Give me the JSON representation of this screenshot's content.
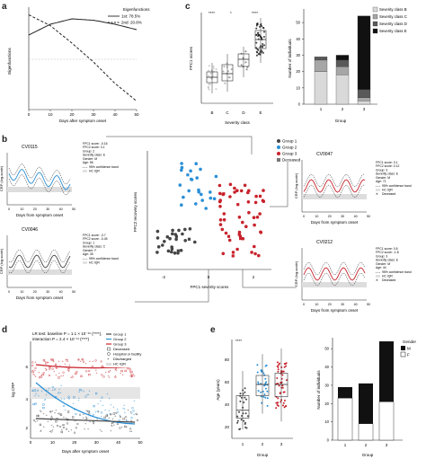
{
  "panels": {
    "a": {
      "letter": "a",
      "ylabel": "Eigenfunctions",
      "xlabel": "Days after symptom onset",
      "xticks": [
        "0",
        "10",
        "20",
        "30",
        "40",
        "50"
      ],
      "legend_title": "Eigenfunctions",
      "legend": [
        "1st: 78.5%",
        "2nd: 20.8%"
      ]
    },
    "c": {
      "letter": "c",
      "ylabel": "FPC1 scores",
      "xlabel": "Severity class",
      "categories": [
        "B",
        "C",
        "D",
        "E"
      ],
      "sig": [
        "****",
        "*",
        "****"
      ],
      "bar_ylabel": "Number of individuals",
      "bar_xlabel": "Group",
      "bar_groups": [
        "1",
        "2",
        "3"
      ],
      "bar_yticks": [
        "0",
        "10",
        "20",
        "30",
        "40",
        "50"
      ],
      "legend": [
        "Severity class B",
        "Severity class C",
        "Severity class D",
        "Severity class E"
      ],
      "colors": [
        "#d9d9d9",
        "#a6a6a6",
        "#595959",
        "#111111"
      ]
    },
    "b": {
      "letter": "b",
      "scatter_xlabel": "FPC1 severity scores",
      "scatter_ylabel": "FPC2 recovery scores",
      "scatter_xticks": [
        "-2",
        "0",
        "2"
      ],
      "legend": [
        "Group 1",
        "Group 2",
        "Group 3",
        "Deceased"
      ],
      "group_colors": [
        "#444444",
        "#2a8fd6",
        "#c8232c"
      ],
      "xlabel": "Days from symptom onset",
      "ylabel": "CRP (log-scale)",
      "insets": [
        {
          "id": "CV0115",
          "info": [
            "FPC1 score: -0.16",
            "FPC2 score: 3.1",
            "Group: 2",
            "Severity class: E",
            "Gender: M",
            "Age: 56"
          ]
        },
        {
          "id": "CV0046",
          "info": [
            "FPC1 score: -3.7",
            "FPC2 score: -0.45",
            "Group: 1",
            "Severity class: C",
            "Gender: F",
            "Age: 35"
          ]
        },
        {
          "id": "CV0047",
          "info": [
            "FPC1 score: 3.1",
            "FPC2 score: 0.12",
            "Group: 3",
            "Severity class: E",
            "Gender: M",
            "Age: 71"
          ]
        },
        {
          "id": "CV0212",
          "info": [
            "FPC1 score: 0.8",
            "FPC2 score: -1.8",
            "Group: 3",
            "Severity class: E",
            "Gender: M",
            "Age: 44"
          ]
        }
      ],
      "band_labels": [
        "95% confidence band",
        "HC IQR"
      ],
      "deceased_label": "Deceased",
      "ticks_x": [
        "0",
        "10",
        "20",
        "30",
        "40",
        "50"
      ]
    },
    "d": {
      "letter": "d",
      "lr_line1": "LR test: baseline P = 1.1 × 10⁻¹⁶ (****),",
      "lr_line2": "interaction P = 2.4 × 10⁻¹¹ (****)",
      "ylabel": "log CRP",
      "xlabel": "Days after symptom onset",
      "xticks": [
        "0",
        "10",
        "20",
        "30",
        "40",
        "50"
      ],
      "yticks": [
        "2",
        "4",
        "6"
      ],
      "legend": [
        "Group 1",
        "Group 2",
        "Group 3",
        "Deceased",
        "Hospital or facility",
        "Discharged",
        "HC IQR"
      ]
    },
    "e": {
      "letter": "e",
      "ylabel": "Age (years)",
      "xlabel": "Group",
      "groups": [
        "1",
        "2",
        "3"
      ],
      "yticks": [
        "20",
        "40",
        "60",
        "80"
      ],
      "sig": "****",
      "bar_ylabel": "Number of individuals",
      "bar_xlabel": "Group",
      "bar_yticks": [
        "0",
        "10",
        "20",
        "30",
        "40",
        "50"
      ],
      "legend_title": "Gender",
      "legend": [
        "M",
        "F"
      ]
    }
  },
  "chart_data": [
    {
      "type": "line",
      "panel": "a",
      "x": [
        0,
        10,
        20,
        30,
        40,
        50
      ],
      "series": [
        {
          "name": "1st: 78.5%",
          "values": [
            0.18,
            0.26,
            0.3,
            0.29,
            0.26,
            0.22
          ]
        },
        {
          "name": "2nd: 20.8%",
          "values": [
            0.33,
            0.25,
            0.12,
            -0.02,
            -0.18,
            -0.31
          ]
        }
      ],
      "ylabel": "Eigenfunctions",
      "xlabel": "Days after symptom onset"
    },
    {
      "type": "bar",
      "panel": "c-right",
      "categories": [
        "1",
        "2",
        "3"
      ],
      "series": [
        {
          "name": "Severity class B",
          "values": [
            20,
            18,
            2
          ]
        },
        {
          "name": "Severity class C",
          "values": [
            7,
            5,
            2
          ]
        },
        {
          "name": "Severity class D",
          "values": [
            2,
            4,
            5
          ]
        },
        {
          "name": "Severity class E",
          "values": [
            0,
            3,
            45
          ]
        }
      ],
      "ylabel": "Number of individuals",
      "xlabel": "Group",
      "ylim": [
        0,
        55
      ]
    },
    {
      "type": "bar",
      "panel": "e-right",
      "categories": [
        "1",
        "2",
        "3"
      ],
      "series": [
        {
          "name": "M",
          "values": [
            6,
            22,
            33
          ]
        },
        {
          "name": "F",
          "values": [
            23,
            9,
            21
          ]
        }
      ],
      "ylabel": "Number of individuals",
      "xlabel": "Group",
      "ylim": [
        0,
        55
      ]
    }
  ]
}
